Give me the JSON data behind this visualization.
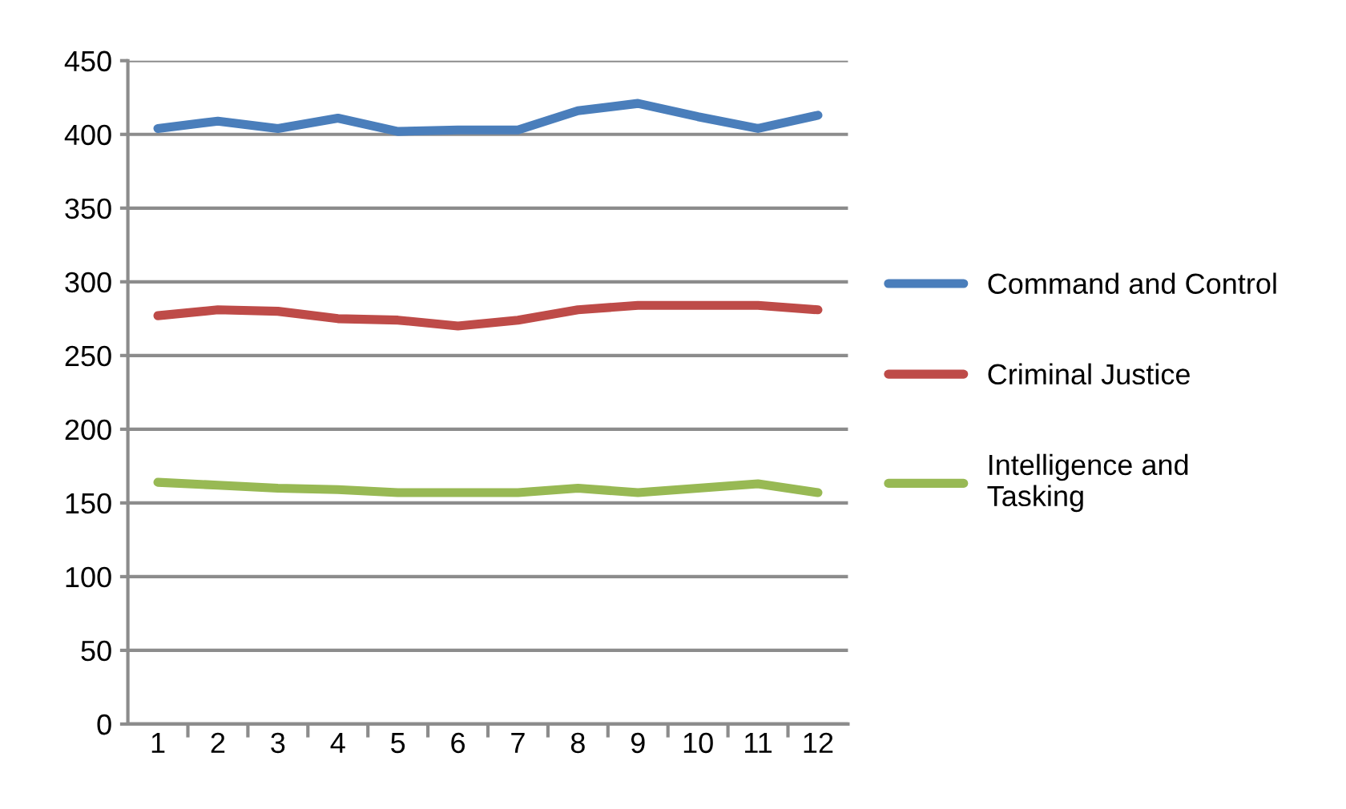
{
  "chart_data": {
    "type": "line",
    "categories": [
      "1",
      "2",
      "3",
      "4",
      "5",
      "6",
      "7",
      "8",
      "9",
      "10",
      "11",
      "12"
    ],
    "series": [
      {
        "name": "Command and Control",
        "color": "#4a7ebb",
        "values": [
          404,
          409,
          404,
          411,
          402,
          403,
          403,
          416,
          421,
          412,
          404,
          413
        ]
      },
      {
        "name": "Criminal Justice",
        "color": "#be4b48",
        "values": [
          277,
          281,
          280,
          275,
          274,
          270,
          274,
          281,
          284,
          284,
          284,
          281
        ]
      },
      {
        "name": "Intelligence and\nTasking",
        "color": "#98b954",
        "values": [
          164,
          162,
          160,
          159,
          157,
          157,
          157,
          160,
          157,
          160,
          163,
          157
        ]
      }
    ],
    "ylim": [
      0,
      450
    ],
    "yticks": [
      0,
      50,
      100,
      150,
      200,
      250,
      300,
      350,
      400,
      450
    ],
    "grid": "y",
    "legend": "right",
    "marker": "none",
    "line_style": "solid"
  }
}
